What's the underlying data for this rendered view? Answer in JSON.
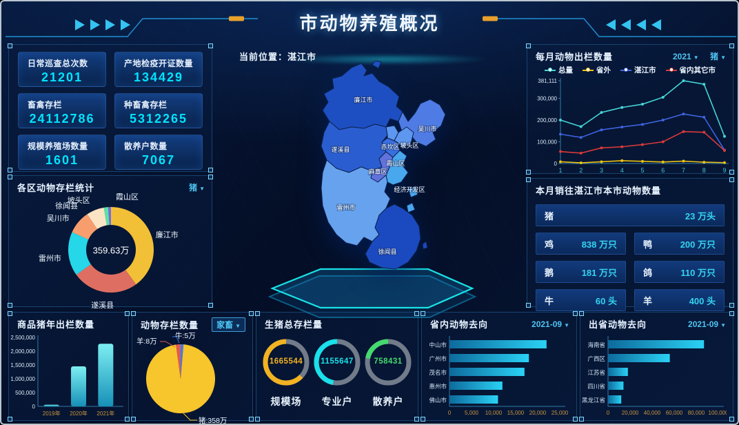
{
  "header": {
    "title": "市动物养殖概况"
  },
  "map": {
    "location": "当前位置：湛江市",
    "regions": [
      {
        "name": "廉江市"
      },
      {
        "name": "吴川市"
      },
      {
        "name": "遂溪县"
      },
      {
        "name": "赤坎区"
      },
      {
        "name": "坡头区"
      },
      {
        "name": "霞山区"
      },
      {
        "name": "麻章区"
      },
      {
        "name": "经济开发区"
      },
      {
        "name": "雷州市"
      },
      {
        "name": "徐闻县"
      }
    ]
  },
  "stats": {
    "cards": [
      {
        "label": "日常巡查总次数",
        "value": "21201"
      },
      {
        "label": "产地检疫开证数量",
        "value": "134429"
      },
      {
        "label": "畜禽存栏",
        "value": "24112786"
      },
      {
        "label": "种畜禽存栏",
        "value": "5312265"
      },
      {
        "label": "规模养殖场数量",
        "value": "1601"
      },
      {
        "label": "散养户数量",
        "value": "7067"
      }
    ]
  },
  "panels": {
    "monthly": {
      "title": "每月动物出栏数量",
      "year_dropdown": "2021",
      "animal_dropdown": "猪"
    },
    "district": {
      "title": "各区动物存栏统计",
      "dropdown": "猪"
    },
    "sales": {
      "title": "本月销往湛江市本市动物数量",
      "rows": [
        [
          {
            "label": "猪",
            "value": "23 万头"
          }
        ],
        [
          {
            "label": "鸡",
            "value": "838 万只"
          },
          {
            "label": "鸭",
            "value": "200 万只"
          }
        ],
        [
          {
            "label": "鹅",
            "value": "181 万只"
          },
          {
            "label": "鸽",
            "value": "110 万只"
          }
        ],
        [
          {
            "label": "牛",
            "value": "60 头"
          },
          {
            "label": "羊",
            "value": "400 头"
          }
        ]
      ]
    },
    "yearly": {
      "title": "商品猪年出栏数量"
    },
    "stock": {
      "title": "动物存栏数量",
      "dropdown": "家畜"
    },
    "pigtotal": {
      "title": "生猪总存栏量"
    },
    "inprov": {
      "title": "省内动物去向",
      "dropdown": "2021-09"
    },
    "outprov": {
      "title": "出省动物去向",
      "dropdown": "2021-09"
    }
  },
  "chart_data": [
    {
      "name": "monthly_outflow",
      "type": "line",
      "title": "每月动物出栏数量",
      "x": [
        1,
        2,
        3,
        4,
        5,
        6,
        7,
        8,
        9
      ],
      "series": [
        {
          "name": "总量",
          "color": "#45d6d6",
          "values": [
            200000,
            170000,
            235000,
            258000,
            273000,
            305000,
            381111,
            365000,
            125000
          ]
        },
        {
          "name": "省外",
          "color": "#edc213",
          "values": [
            8000,
            3000,
            8000,
            13000,
            10000,
            7000,
            11000,
            6000,
            4000
          ]
        },
        {
          "name": "湛江市",
          "color": "#3f63e0",
          "values": [
            135000,
            120000,
            155000,
            168000,
            180000,
            200000,
            228000,
            213000,
            62000
          ]
        },
        {
          "name": "省内其它市",
          "color": "#d93a3a",
          "values": [
            55000,
            48000,
            72000,
            77000,
            87000,
            100000,
            147000,
            144000,
            60000
          ]
        }
      ],
      "ylim": [
        0,
        381111
      ],
      "yticks": [
        "0",
        "100,000",
        "200,000",
        "300,000",
        "381,111"
      ],
      "ytick_vals": [
        0,
        100000,
        200000,
        300000,
        381111
      ],
      "legend_position": "top"
    },
    {
      "name": "district_donut",
      "type": "donut",
      "title": "各区动物存栏统计",
      "center_label": "359.63万",
      "slices": [
        {
          "name": "廉江市",
          "value": 144,
          "color": "#f2c037"
        },
        {
          "name": "遂溪县",
          "value": 90,
          "color": "#df6e62"
        },
        {
          "name": "雷州市",
          "value": 60,
          "color": "#26d6e9"
        },
        {
          "name": "吴川市",
          "value": 32,
          "color": "#f89e6e"
        },
        {
          "name": "徐闻县",
          "value": 24,
          "color": "#fbe4c3"
        },
        {
          "name": "坡头区",
          "value": 6,
          "color": "#57e3a6"
        },
        {
          "name": "霞山区",
          "value": 3.63,
          "color": "#7d66e3"
        }
      ]
    },
    {
      "name": "yearly_pigs",
      "type": "bar",
      "title": "商品猪年出栏数量",
      "categories": [
        "2019年",
        "2020年",
        "2021年"
      ],
      "values": [
        60000,
        1450000,
        2270000
      ],
      "ylim": [
        0,
        2500000
      ],
      "yticks": [
        "0",
        "500,000",
        "1,000,000",
        "1,500,000",
        "2,000,000",
        "2,500,000"
      ],
      "ytick_vals": [
        0,
        500000,
        1000000,
        1500000,
        2000000,
        2500000
      ]
    },
    {
      "name": "stock_pie",
      "type": "pie",
      "title": "动物存栏数量",
      "slices": [
        {
          "name": "牛",
          "label": "牛:5万",
          "value": 5,
          "color": "#3d7de8"
        },
        {
          "name": "猪",
          "label": "猪:358万",
          "value": 358,
          "color": "#f7c52c"
        },
        {
          "name": "羊",
          "label": "羊:8万",
          "value": 8,
          "color": "#e05b50"
        }
      ]
    },
    {
      "name": "pig_gauges",
      "type": "gauge",
      "title": "生猪总存栏量",
      "gauges": [
        {
          "label": "规模场",
          "value": "1665544",
          "color": "#f2b321",
          "percent": 0.63
        },
        {
          "label": "专业户",
          "value": "1155647",
          "color": "#19e0ea",
          "percent": 0.47
        },
        {
          "label": "散养户",
          "value": "758431",
          "color": "#45d96f",
          "percent": 0.22
        }
      ]
    },
    {
      "name": "province_dest",
      "type": "hbar",
      "title": "省内动物去向",
      "categories": [
        "中山市",
        "广州市",
        "茂名市",
        "惠州市",
        "佛山市"
      ],
      "values": [
        22000,
        18000,
        17000,
        12000,
        11000
      ],
      "xlim": [
        0,
        25000
      ],
      "xticks": [
        "0",
        "5,000",
        "10,000",
        "15,000",
        "20,000",
        "25,000"
      ],
      "xtick_vals": [
        0,
        5000,
        10000,
        15000,
        20000,
        25000
      ]
    },
    {
      "name": "out_province_dest",
      "type": "hbar",
      "title": "出省动物去向",
      "categories": [
        "海南省",
        "广西区",
        "江苏省",
        "四川省",
        "黑龙江省"
      ],
      "values": [
        87000,
        56000,
        18000,
        14000,
        12000
      ],
      "xlim": [
        0,
        100000
      ],
      "xticks": [
        "0",
        "20,000",
        "40,000",
        "60,000",
        "80,000",
        "100,000"
      ],
      "xtick_vals": [
        0,
        20000,
        40000,
        60000,
        80000,
        100000
      ]
    }
  ]
}
